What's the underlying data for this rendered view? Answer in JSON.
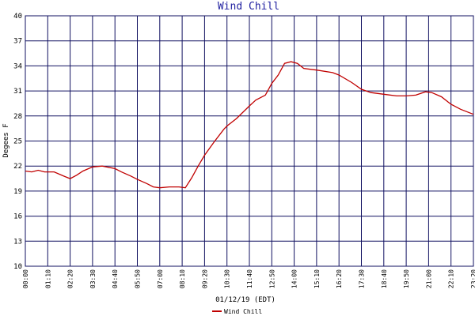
{
  "chart_data": {
    "type": "line",
    "title": "Wind Chill",
    "x_label": "01/12/19 (EDT)",
    "y_label": "Degees F",
    "x": [
      "00:00",
      "00:20",
      "00:40",
      "01:00",
      "01:30",
      "02:00",
      "02:20",
      "02:40",
      "03:00",
      "03:30",
      "04:00",
      "04:40",
      "05:00",
      "05:30",
      "05:50",
      "06:20",
      "06:40",
      "07:00",
      "07:30",
      "08:00",
      "08:20",
      "08:40",
      "09:00",
      "09:20",
      "09:50",
      "10:20",
      "10:30",
      "11:00",
      "11:40",
      "12:00",
      "12:30",
      "12:50",
      "13:10",
      "13:30",
      "13:50",
      "14:10",
      "14:30",
      "15:10",
      "16:00",
      "16:20",
      "17:00",
      "17:30",
      "18:00",
      "18:40",
      "19:20",
      "19:50",
      "20:20",
      "20:50",
      "21:10",
      "21:40",
      "22:10",
      "22:40",
      "23:20"
    ],
    "series": [
      {
        "name": "Wind Chill",
        "color": "#c00000",
        "values": [
          21.4,
          21.3,
          21.5,
          21.3,
          21.3,
          20.8,
          20.5,
          20.9,
          21.4,
          21.9,
          22.0,
          21.7,
          21.3,
          20.8,
          20.4,
          19.9,
          19.5,
          19.4,
          19.5,
          19.5,
          19.4,
          20.6,
          22.0,
          23.3,
          24.9,
          26.4,
          26.8,
          27.7,
          29.2,
          29.9,
          30.5,
          31.9,
          32.9,
          34.3,
          34.5,
          34.3,
          33.7,
          33.5,
          33.2,
          32.9,
          32.0,
          31.2,
          30.8,
          30.6,
          30.4,
          30.4,
          30.5,
          30.9,
          30.8,
          30.3,
          29.4,
          28.8,
          28.2
        ]
      }
    ],
    "xlim": [
      "00:00",
      "23:20"
    ],
    "xticks": [
      "00:00",
      "01:10",
      "02:20",
      "03:30",
      "04:40",
      "05:50",
      "07:00",
      "08:10",
      "09:20",
      "10:30",
      "11:40",
      "12:50",
      "14:00",
      "15:10",
      "16:20",
      "17:30",
      "18:40",
      "19:50",
      "21:00",
      "22:10",
      "23:20"
    ],
    "ylim": [
      10,
      40
    ],
    "yticks": [
      10,
      13,
      16,
      19,
      22,
      25,
      28,
      31,
      34,
      37,
      40
    ],
    "grid": true,
    "legend": "bottom"
  }
}
